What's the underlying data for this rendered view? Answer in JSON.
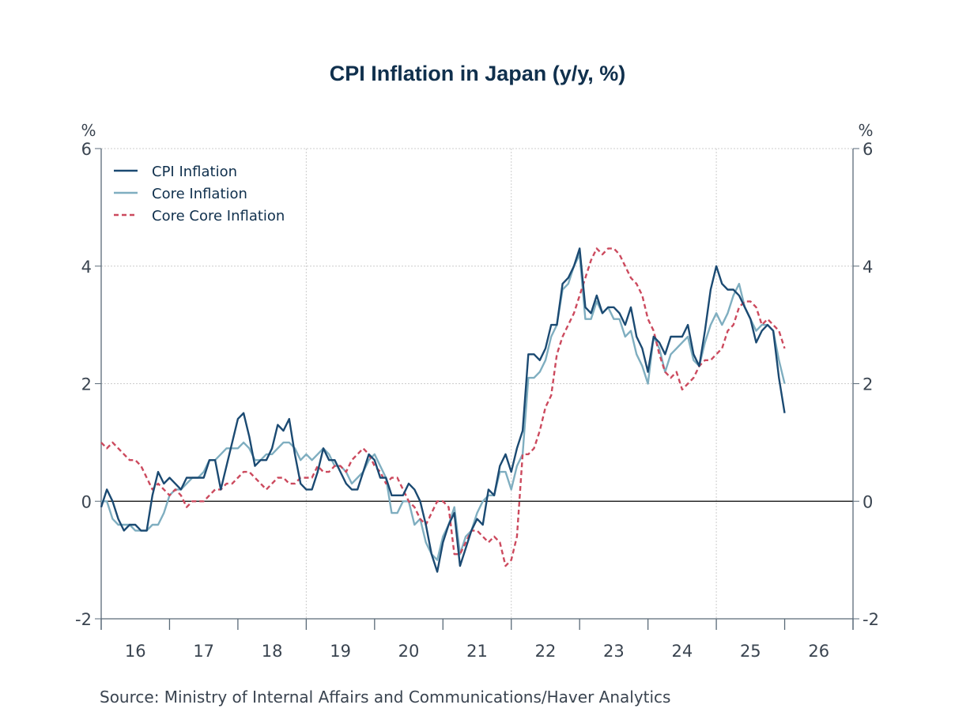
{
  "chart_data": {
    "type": "line",
    "title": "CPI Inflation in Japan (y/y, %)",
    "xlabel": "",
    "ylabel_left": "%",
    "ylabel_right": "%",
    "source": "Source:  Ministry of Internal Affairs and Communications/Haver Analytics",
    "x_start": "2016-01",
    "frequency": "monthly",
    "x_range_years": [
      2016,
      2027
    ],
    "x_tick_labels": [
      "16",
      "17",
      "18",
      "19",
      "20",
      "21",
      "22",
      "23",
      "24",
      "25",
      "26"
    ],
    "ylim": [
      -2,
      6
    ],
    "y_ticks": [
      -2,
      0,
      2,
      4,
      6
    ],
    "y_tick_labels": [
      "-2",
      "0",
      "2",
      "4",
      "6"
    ],
    "grid": true,
    "zero_line": true,
    "legend_position": "top-left",
    "colors": {
      "cpi": "#1b4a72",
      "core": "#7faec0",
      "corecore": "#cc4a5e",
      "axis": "#5a6a78",
      "grid": "#cccccc"
    },
    "series": [
      {
        "name": "CPI Inflation",
        "key": "cpi",
        "style": "solid",
        "values": [
          -0.1,
          0.2,
          0.0,
          -0.3,
          -0.5,
          -0.4,
          -0.4,
          -0.5,
          -0.5,
          0.1,
          0.5,
          0.3,
          0.4,
          0.3,
          0.2,
          0.4,
          0.4,
          0.4,
          0.4,
          0.7,
          0.7,
          0.2,
          0.6,
          1.0,
          1.4,
          1.5,
          1.1,
          0.6,
          0.7,
          0.7,
          0.9,
          1.3,
          1.2,
          1.4,
          0.8,
          0.3,
          0.2,
          0.2,
          0.5,
          0.9,
          0.7,
          0.7,
          0.5,
          0.3,
          0.2,
          0.2,
          0.5,
          0.8,
          0.7,
          0.4,
          0.4,
          0.1,
          0.1,
          0.1,
          0.3,
          0.2,
          0.0,
          -0.4,
          -0.9,
          -1.2,
          -0.7,
          -0.4,
          -0.2,
          -1.1,
          -0.8,
          -0.5,
          -0.3,
          -0.4,
          0.2,
          0.1,
          0.6,
          0.8,
          0.5,
          0.9,
          1.2,
          2.5,
          2.5,
          2.4,
          2.6,
          3.0,
          3.0,
          3.7,
          3.8,
          4.0,
          4.3,
          3.3,
          3.2,
          3.5,
          3.2,
          3.3,
          3.3,
          3.2,
          3.0,
          3.3,
          2.8,
          2.6,
          2.2,
          2.8,
          2.7,
          2.5,
          2.8,
          2.8,
          2.8,
          3.0,
          2.5,
          2.3,
          2.9,
          3.6,
          4.0,
          3.7,
          3.6,
          3.6,
          3.5,
          3.3,
          3.1,
          2.7,
          2.9,
          3.0,
          2.9,
          2.1,
          1.5
        ]
      },
      {
        "name": "Core Inflation",
        "key": "core",
        "style": "solid",
        "values": [
          0.0,
          0.0,
          -0.3,
          -0.4,
          -0.4,
          -0.4,
          -0.5,
          -0.5,
          -0.5,
          -0.4,
          -0.4,
          -0.2,
          0.1,
          0.2,
          0.2,
          0.3,
          0.4,
          0.4,
          0.5,
          0.7,
          0.7,
          0.8,
          0.9,
          0.9,
          0.9,
          1.0,
          0.9,
          0.7,
          0.7,
          0.8,
          0.8,
          0.9,
          1.0,
          1.0,
          0.9,
          0.7,
          0.8,
          0.7,
          0.8,
          0.9,
          0.8,
          0.6,
          0.6,
          0.5,
          0.3,
          0.4,
          0.5,
          0.7,
          0.8,
          0.6,
          0.4,
          -0.2,
          -0.2,
          0.0,
          0.0,
          -0.4,
          -0.3,
          -0.7,
          -0.9,
          -1.0,
          -0.6,
          -0.4,
          -0.1,
          -0.9,
          -0.6,
          -0.5,
          -0.2,
          0.0,
          0.1,
          0.1,
          0.5,
          0.5,
          0.2,
          0.6,
          0.8,
          2.1,
          2.1,
          2.2,
          2.4,
          2.8,
          3.0,
          3.6,
          3.7,
          4.0,
          4.2,
          3.1,
          3.1,
          3.4,
          3.2,
          3.3,
          3.1,
          3.1,
          2.8,
          2.9,
          2.5,
          2.3,
          2.0,
          2.8,
          2.6,
          2.2,
          2.5,
          2.6,
          2.7,
          2.8,
          2.4,
          2.3,
          2.7,
          3.0,
          3.2,
          3.0,
          3.2,
          3.5,
          3.7,
          3.3,
          3.1,
          2.9,
          3.0,
          3.0,
          2.9,
          2.4,
          2.0
        ]
      },
      {
        "name": "Core Core Inflation",
        "key": "corecore",
        "style": "dashed",
        "values": [
          1.0,
          0.9,
          1.0,
          0.9,
          0.8,
          0.7,
          0.7,
          0.6,
          0.4,
          0.2,
          0.3,
          0.2,
          0.1,
          0.2,
          0.1,
          -0.1,
          0.0,
          0.0,
          0.0,
          0.1,
          0.2,
          0.2,
          0.3,
          0.3,
          0.4,
          0.5,
          0.5,
          0.4,
          0.3,
          0.2,
          0.3,
          0.4,
          0.4,
          0.3,
          0.3,
          0.4,
          0.4,
          0.4,
          0.6,
          0.5,
          0.5,
          0.6,
          0.6,
          0.5,
          0.7,
          0.8,
          0.9,
          0.8,
          0.6,
          0.5,
          0.3,
          0.4,
          0.4,
          0.2,
          0.0,
          -0.1,
          -0.3,
          -0.4,
          -0.2,
          0.0,
          0.0,
          -0.1,
          -0.9,
          -0.9,
          -0.7,
          -0.5,
          -0.5,
          -0.6,
          -0.7,
          -0.6,
          -0.7,
          -1.1,
          -1.0,
          -0.6,
          0.8,
          0.8,
          0.9,
          1.2,
          1.6,
          1.8,
          2.5,
          2.8,
          3.0,
          3.2,
          3.5,
          3.8,
          4.1,
          4.3,
          4.2,
          4.3,
          4.3,
          4.2,
          4.0,
          3.8,
          3.7,
          3.5,
          3.1,
          2.9,
          2.5,
          2.2,
          2.1,
          2.2,
          1.9,
          2.0,
          2.1,
          2.3,
          2.4,
          2.4,
          2.5,
          2.6,
          2.9,
          3.0,
          3.3,
          3.4,
          3.4,
          3.3,
          3.0,
          3.1,
          3.0,
          2.9,
          2.6
        ]
      }
    ]
  }
}
